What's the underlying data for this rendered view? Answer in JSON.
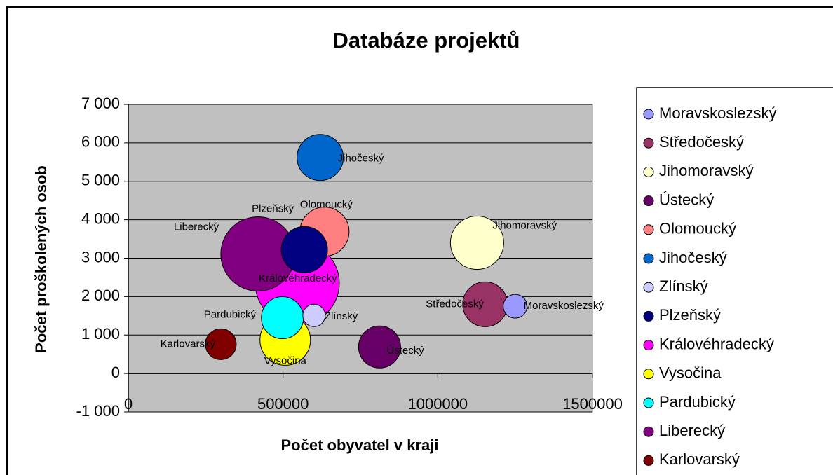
{
  "chart_data": {
    "type": "bubble",
    "title": "Databáze projektů",
    "x_label": "Počet obyvatel v kraji",
    "y_label": "Počet proškolených osob",
    "xlim": [
      0,
      1500000
    ],
    "xticks": [
      0,
      500000,
      1000000,
      1500000
    ],
    "ylim": [
      -1000,
      7000
    ],
    "yticks": [
      {
        "value": -1000,
        "label": "-1 000"
      },
      0,
      {
        "value": 1000,
        "label": "1 000"
      },
      {
        "value": 2000,
        "label": "2 000"
      },
      {
        "value": 3000,
        "label": "3 000"
      },
      {
        "value": 4000,
        "label": "4 000"
      },
      {
        "value": 5000,
        "label": "5 000"
      },
      {
        "value": 6000,
        "label": "6 000"
      },
      {
        "value": 7000,
        "label": "7 000"
      }
    ],
    "grid": true,
    "legend": "right",
    "series": [
      {
        "name": "Moravskoslezský",
        "color": "#9999ff",
        "x": [
          1250000
        ],
        "values": [
          1750
        ],
        "sizes": [
          289
        ]
      },
      {
        "name": "Středočeský",
        "color": "#993366",
        "x": [
          1153000
        ],
        "values": [
          1800
        ],
        "sizes": [
          1024
        ]
      },
      {
        "name": "Jihomoravský",
        "color": "#ffffcc",
        "x": [
          1127000
        ],
        "values": [
          3400
        ],
        "sizes": [
          1444
        ]
      },
      {
        "name": "Ústecký",
        "color": "#660066",
        "x": [
          812000
        ],
        "values": [
          690
        ],
        "sizes": [
          900
        ]
      },
      {
        "name": "Olomoucký",
        "color": "#ff8080",
        "x": [
          634000
        ],
        "values": [
          3690
        ],
        "sizes": [
          1225
        ]
      },
      {
        "name": "Jihočeský",
        "color": "#0066cc",
        "x": [
          620000
        ],
        "values": [
          5620
        ],
        "sizes": [
          1089
        ]
      },
      {
        "name": "Zlínský",
        "color": "#ccccff",
        "x": [
          600000
        ],
        "values": [
          1510
        ],
        "sizes": [
          256
        ]
      },
      {
        "name": "Plzeňský",
        "color": "#000080",
        "x": [
          569000
        ],
        "values": [
          3220
        ],
        "sizes": [
          1089
        ]
      },
      {
        "name": "Královéhradecký",
        "color": "#ff00ff",
        "x": [
          546000
        ],
        "values": [
          2350
        ],
        "sizes": [
          3600
        ]
      },
      {
        "name": "Vysočina",
        "color": "#ffff00",
        "x": [
          507000
        ],
        "values": [
          870
        ],
        "sizes": [
          1296
        ]
      },
      {
        "name": "Pardubický",
        "color": "#00ffff",
        "x": [
          498000
        ],
        "values": [
          1450
        ],
        "sizes": [
          900
        ]
      },
      {
        "name": "Liberecký",
        "color": "#800080",
        "x": [
          419000
        ],
        "values": [
          3110
        ],
        "sizes": [
          2809
        ]
      },
      {
        "name": "Karlovarský",
        "color": "#800000",
        "x": [
          299000
        ],
        "values": [
          760
        ],
        "sizes": [
          484
        ]
      }
    ]
  }
}
